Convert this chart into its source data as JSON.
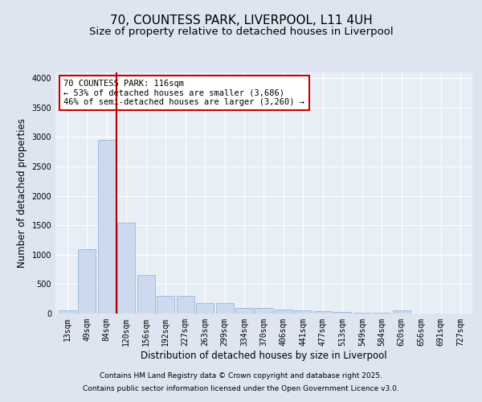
{
  "title_line1": "70, COUNTESS PARK, LIVERPOOL, L11 4UH",
  "title_line2": "Size of property relative to detached houses in Liverpool",
  "xlabel": "Distribution of detached houses by size in Liverpool",
  "ylabel": "Number of detached properties",
  "categories": [
    "13sqm",
    "49sqm",
    "84sqm",
    "120sqm",
    "156sqm",
    "192sqm",
    "227sqm",
    "263sqm",
    "299sqm",
    "334sqm",
    "370sqm",
    "406sqm",
    "441sqm",
    "477sqm",
    "513sqm",
    "549sqm",
    "584sqm",
    "620sqm",
    "656sqm",
    "691sqm",
    "727sqm"
  ],
  "values": [
    50,
    1100,
    2950,
    1550,
    650,
    300,
    300,
    175,
    175,
    100,
    90,
    75,
    50,
    40,
    28,
    18,
    14,
    50,
    5,
    3,
    2
  ],
  "bar_color": "#ccd9ee",
  "bar_edge_color": "#8aaed4",
  "vline_color": "#aa0000",
  "vline_x": 2.5,
  "ylim": [
    0,
    4100
  ],
  "yticks": [
    0,
    500,
    1000,
    1500,
    2000,
    2500,
    3000,
    3500,
    4000
  ],
  "annotation_text": "70 COUNTESS PARK: 116sqm\n← 53% of detached houses are smaller (3,686)\n46% of semi-detached houses are larger (3,260) →",
  "annotation_box_color": "#ffffff",
  "annotation_box_edgecolor": "#cc0000",
  "footer_line1": "Contains HM Land Registry data © Crown copyright and database right 2025.",
  "footer_line2": "Contains public sector information licensed under the Open Government Licence v3.0.",
  "bg_color": "#dde6f0",
  "plot_bg_color": "#e8eef6",
  "grid_color": "#ffffff",
  "title_fontsize": 11,
  "subtitle_fontsize": 9.5,
  "axis_label_fontsize": 8.5,
  "tick_fontsize": 7,
  "annot_fontsize": 7.5,
  "footer_fontsize": 6.5
}
